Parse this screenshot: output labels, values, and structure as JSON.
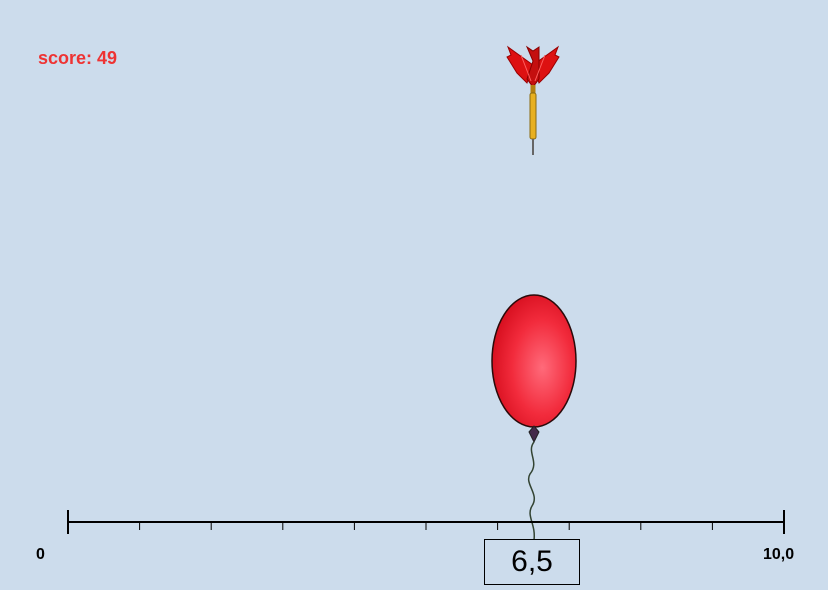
{
  "hud": {
    "score_text": "score: 49"
  },
  "number_line": {
    "min_label": "0",
    "max_label": "10,0",
    "min_value": 0,
    "max_value": 10,
    "tick_count": 10
  },
  "answer": {
    "value_text": "6,5",
    "value": 6.5
  },
  "icons": {
    "dart": "dart-icon",
    "balloon": "balloon-icon"
  },
  "colors": {
    "background": "#ccdcec",
    "score": "#ee3333",
    "balloon": "#ee2233",
    "dart_fletching": "#dd1111",
    "dart_shaft": "#e8b020"
  }
}
